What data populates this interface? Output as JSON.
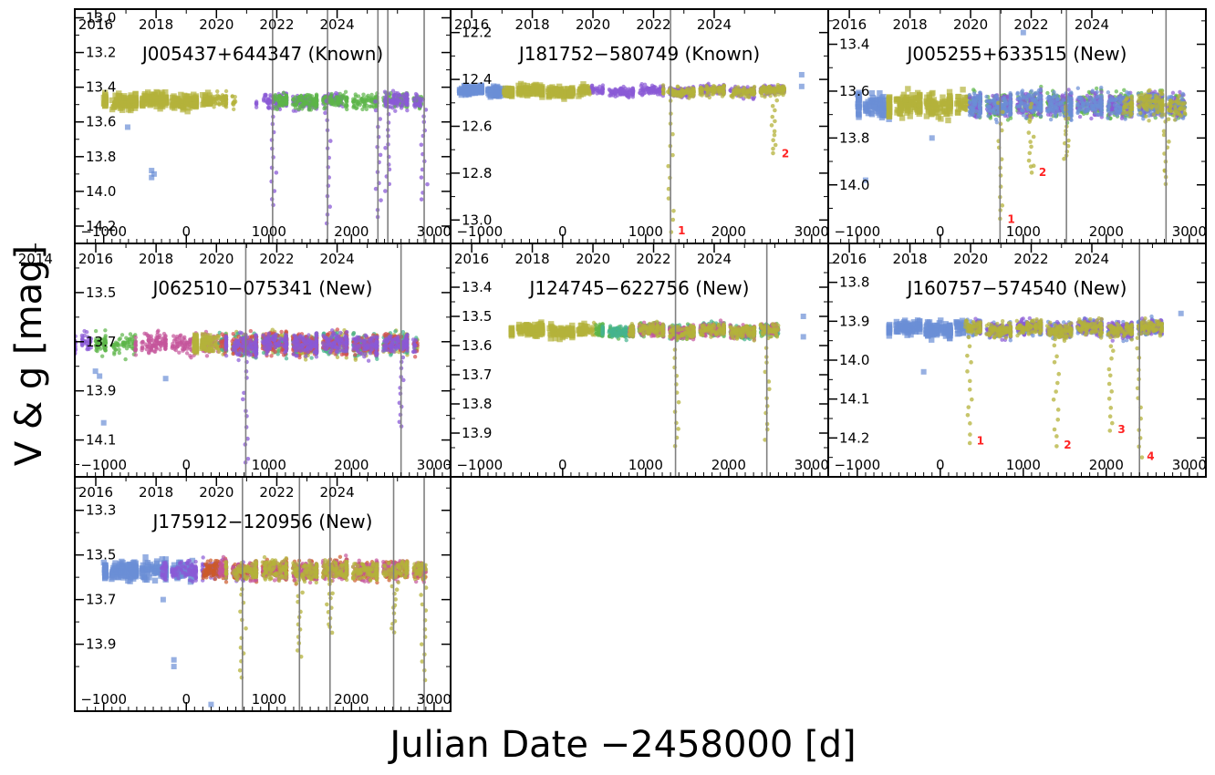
{
  "figure": {
    "ylabel": "V & g [mag]",
    "xlabel": "Julian Date −2458000 [d]"
  },
  "chart_data": [
    {
      "type": "scatter",
      "title": "J005437+644347 (Known)",
      "xlim": [
        -1350,
        3200
      ],
      "ylim": [
        14.3,
        12.95
      ],
      "xticks": [
        -1000,
        0,
        1000,
        2000,
        3000
      ],
      "xtick_labels": [
        "−1000",
        "0",
        "1000",
        "2000",
        "3000"
      ],
      "yticks": [
        13.0,
        13.2,
        13.4,
        13.6,
        13.8,
        14.0,
        14.2
      ],
      "ytick_labels": [
        "13.0",
        "13.2",
        "13.4",
        "13.6",
        "13.8",
        "14.0",
        "14.2"
      ],
      "top_ticks": [
        2016,
        2018,
        2020,
        2022,
        2024
      ],
      "baseline": 13.48,
      "scatter": 0.04,
      "segments": [
        [
          -1000,
          -300,
          "c_y"
        ],
        [
          -300,
          600,
          "c_y"
        ],
        [
          900,
          1900,
          "c_p"
        ],
        [
          1050,
          2850,
          "c_g"
        ],
        [
          2400,
          2850,
          "c_p"
        ]
      ],
      "vlines": [
        1045,
        1710,
        2320,
        2440,
        2880
      ],
      "dips": [
        {
          "x": 1045,
          "depth": 14.08,
          "label": ""
        },
        {
          "x": 1710,
          "depth": 14.2,
          "label": ""
        },
        {
          "x": 2320,
          "depth": 14.15,
          "label": ""
        },
        {
          "x": 2440,
          "depth": 14.0,
          "label": ""
        },
        {
          "x": 2880,
          "depth": 14.05,
          "label": ""
        }
      ],
      "extra_points": [
        {
          "x": -420,
          "y": 13.88
        },
        {
          "x": -420,
          "y": 13.92
        },
        {
          "x": -390,
          "y": 13.9
        },
        {
          "x": -710,
          "y": 13.63
        }
      ]
    },
    {
      "type": "scatter",
      "title": "J181752−580749 (Known)",
      "xlim": [
        -1350,
        3200
      ],
      "ylim": [
        13.1,
        12.1
      ],
      "xticks": [
        -1000,
        0,
        1000,
        2000,
        3000
      ],
      "xtick_labels": [
        "−1000",
        "0",
        "1000",
        "2000",
        "3000"
      ],
      "yticks": [
        12.2,
        12.4,
        12.6,
        12.8,
        13.0
      ],
      "ytick_labels": [
        "12.2",
        "12.4",
        "12.6",
        "12.8",
        "13.0"
      ],
      "top_ticks": [
        2016,
        2018,
        2020,
        2022,
        2024
      ],
      "baseline": 12.45,
      "scatter": 0.02,
      "segments": [
        [
          -1250,
          -700,
          "c_b"
        ],
        [
          -700,
          350,
          "c_y"
        ],
        [
          350,
          1250,
          "c_p"
        ],
        [
          1250,
          2700,
          "c_p"
        ],
        [
          1250,
          2700,
          "c_y"
        ]
      ],
      "vlines": [
        1300
      ],
      "dips": [
        {
          "x": 1300,
          "depth": 13.05,
          "label": "1"
        },
        {
          "x": 2550,
          "depth": 12.72,
          "label": "2"
        }
      ],
      "extra_points": [
        {
          "x": 2880,
          "y": 12.38
        },
        {
          "x": 2880,
          "y": 12.43
        }
      ]
    },
    {
      "type": "scatter",
      "title": "J005255+633515 (New)",
      "xlim": [
        -1350,
        3200
      ],
      "ylim": [
        14.25,
        13.25
      ],
      "xticks": [
        -1000,
        0,
        1000,
        2000,
        3000
      ],
      "xtick_labels": [
        "−1000",
        "0",
        "1000",
        "2000",
        "3000"
      ],
      "yticks": [
        13.4,
        13.6,
        13.8,
        14.0
      ],
      "ytick_labels": [
        "13.4",
        "13.6",
        "13.8",
        "14.0"
      ],
      "top_ticks": [
        2016,
        2018,
        2020,
        2022,
        2024
      ],
      "baseline": 13.66,
      "scatter": 0.05,
      "segments": [
        [
          -1000,
          -600,
          "c_b"
        ],
        [
          -600,
          350,
          "c_y"
        ],
        [
          350,
          2950,
          "c_g"
        ],
        [
          350,
          2950,
          "c_p"
        ],
        [
          350,
          2950,
          "c_b"
        ],
        [
          2200,
          2950,
          "c_y"
        ]
      ],
      "vlines": [
        720,
        1520,
        2720
      ],
      "dips": [
        {
          "x": 720,
          "depth": 14.15,
          "label": "1"
        },
        {
          "x": 1100,
          "depth": 13.95,
          "label": "2"
        },
        {
          "x": 1520,
          "depth": 13.9,
          "label": ""
        },
        {
          "x": 2720,
          "depth": 14.0,
          "label": ""
        }
      ],
      "extra_points": [
        {
          "x": -900,
          "y": 13.98
        },
        {
          "x": -100,
          "y": 13.8
        },
        {
          "x": 1000,
          "y": 13.35
        }
      ]
    },
    {
      "type": "scatter",
      "title": "J062510−075341 (New)",
      "xlim": [
        -1350,
        3200
      ],
      "ylim": [
        14.25,
        13.3
      ],
      "xticks": [
        -1000,
        0,
        1000,
        2000,
        3000
      ],
      "xtick_labels": [
        "−1000",
        "0",
        "1000",
        "2000",
        "3000"
      ],
      "yticks": [
        13.5,
        13.7,
        13.9,
        14.1
      ],
      "ytick_labels": [
        "13.5",
        "13.7",
        "13.9",
        "14.1"
      ],
      "top_ticks": [
        2014,
        2016,
        2018,
        2020,
        2022,
        2024
      ],
      "baseline": 13.71,
      "scatter": 0.04,
      "segments": [
        [
          -1350,
          -1150,
          "c_p"
        ],
        [
          -1100,
          -600,
          "c_g"
        ],
        [
          -600,
          400,
          "c_m"
        ],
        [
          100,
          2800,
          "c_y"
        ],
        [
          400,
          2800,
          "c_t"
        ],
        [
          400,
          2800,
          "c_r"
        ],
        [
          500,
          2800,
          "c_p"
        ]
      ],
      "vlines": [
        720,
        2600
      ],
      "dips": [
        {
          "x": 720,
          "depth": 14.2,
          "label": ""
        },
        {
          "x": 2600,
          "depth": 14.05,
          "label": ""
        }
      ],
      "extra_points": [
        {
          "x": -1050,
          "y": 13.84
        },
        {
          "x": -1000,
          "y": 14.03
        },
        {
          "x": -250,
          "y": 13.85
        },
        {
          "x": -1100,
          "y": 13.82
        }
      ]
    },
    {
      "type": "scatter",
      "title": "J124745−622756 (New)",
      "xlim": [
        -1350,
        3200
      ],
      "ylim": [
        14.05,
        13.25
      ],
      "xticks": [
        -1000,
        0,
        1000,
        2000,
        3000
      ],
      "xtick_labels": [
        "−1000",
        "0",
        "1000",
        "2000",
        "3000"
      ],
      "yticks": [
        13.4,
        13.5,
        13.6,
        13.7,
        13.8,
        13.9
      ],
      "ytick_labels": [
        "13.4",
        "13.5",
        "13.6",
        "13.7",
        "13.8",
        "13.9"
      ],
      "top_ticks": [
        2016,
        2018,
        2020,
        2022,
        2024
      ],
      "baseline": 13.55,
      "scatter": 0.02,
      "segments": [
        [
          -600,
          400,
          "c_y"
        ],
        [
          400,
          2600,
          "c_g"
        ],
        [
          500,
          2600,
          "c_t"
        ],
        [
          800,
          2600,
          "c_m"
        ],
        [
          800,
          2600,
          "c_y"
        ]
      ],
      "vlines": [
        1360,
        2460
      ],
      "dips": [
        {
          "x": 1360,
          "depth": 13.95,
          "label": ""
        },
        {
          "x": 2460,
          "depth": 13.92,
          "label": ""
        }
      ],
      "extra_points": [
        {
          "x": 2900,
          "y": 13.5
        },
        {
          "x": 2900,
          "y": 13.57
        }
      ]
    },
    {
      "type": "scatter",
      "title": "J160757−574540 (New)",
      "xlim": [
        -1350,
        3200
      ],
      "ylim": [
        14.3,
        13.7
      ],
      "xticks": [
        -1000,
        0,
        1000,
        2000,
        3000
      ],
      "xtick_labels": [
        "−1000",
        "0",
        "1000",
        "2000",
        "3000"
      ],
      "yticks": [
        13.8,
        13.9,
        14.0,
        14.1,
        14.2
      ],
      "ytick_labels": [
        "13.8",
        "13.9",
        "14.0",
        "14.1",
        "14.2"
      ],
      "top_ticks": [
        2016,
        2018,
        2020,
        2022,
        2024
      ],
      "baseline": 13.92,
      "scatter": 0.018,
      "segments": [
        [
          -600,
          300,
          "c_b"
        ],
        [
          300,
          2700,
          "c_b"
        ],
        [
          400,
          2700,
          "c_p"
        ],
        [
          300,
          2700,
          "c_y"
        ]
      ],
      "vlines": [
        2400
      ],
      "dips": [
        {
          "x": 350,
          "depth": 14.21,
          "label": "1"
        },
        {
          "x": 1400,
          "depth": 14.22,
          "label": "2"
        },
        {
          "x": 2050,
          "depth": 14.18,
          "label": "3"
        },
        {
          "x": 2400,
          "depth": 14.25,
          "label": "4"
        }
      ],
      "extra_points": [
        {
          "x": -200,
          "y": 14.03
        },
        {
          "x": 2900,
          "y": 13.88
        }
      ]
    },
    {
      "type": "scatter",
      "title": "J175912−120956 (New)",
      "xlim": [
        -1350,
        3200
      ],
      "ylim": [
        14.2,
        13.15
      ],
      "xticks": [
        -1000,
        0,
        1000,
        2000,
        3000
      ],
      "xtick_labels": [
        "−1000",
        "0",
        "1000",
        "2000",
        "3000"
      ],
      "yticks": [
        13.3,
        13.5,
        13.7,
        13.9
      ],
      "ytick_labels": [
        "13.3",
        "13.5",
        "13.7",
        "13.9"
      ],
      "top_ticks": [
        2016,
        2018,
        2020,
        2022,
        2024
      ],
      "baseline": 13.57,
      "scatter": 0.04,
      "segments": [
        [
          -1000,
          100,
          "c_b"
        ],
        [
          -300,
          700,
          "c_p"
        ],
        [
          200,
          2900,
          "c_o"
        ],
        [
          400,
          2900,
          "c_m"
        ],
        [
          500,
          2900,
          "c_y"
        ]
      ],
      "vlines": [
        680,
        1370,
        1740,
        2510,
        2880
      ],
      "dips": [
        {
          "x": 680,
          "depth": 14.05,
          "label": ""
        },
        {
          "x": 1370,
          "depth": 13.95,
          "label": ""
        },
        {
          "x": 1740,
          "depth": 13.85,
          "label": ""
        },
        {
          "x": 2510,
          "depth": 13.85,
          "label": ""
        },
        {
          "x": 2880,
          "depth": 14.05,
          "label": ""
        }
      ],
      "extra_points": [
        {
          "x": -150,
          "y": 13.97
        },
        {
          "x": -150,
          "y": 14.0
        },
        {
          "x": 300,
          "y": 14.17
        },
        {
          "x": -280,
          "y": 13.7
        }
      ]
    }
  ],
  "colors": {
    "c_b": "#6b8fd6",
    "c_y": "#b4b23a",
    "c_p": "#8a5ad6",
    "c_g": "#5db548",
    "c_m": "#c4559b",
    "c_t": "#45b48d",
    "c_r": "#d64d4d",
    "c_o": "#cc5a2a",
    "vline": "#808080",
    "dip_label": "#ff2222",
    "axis": "#000000"
  }
}
